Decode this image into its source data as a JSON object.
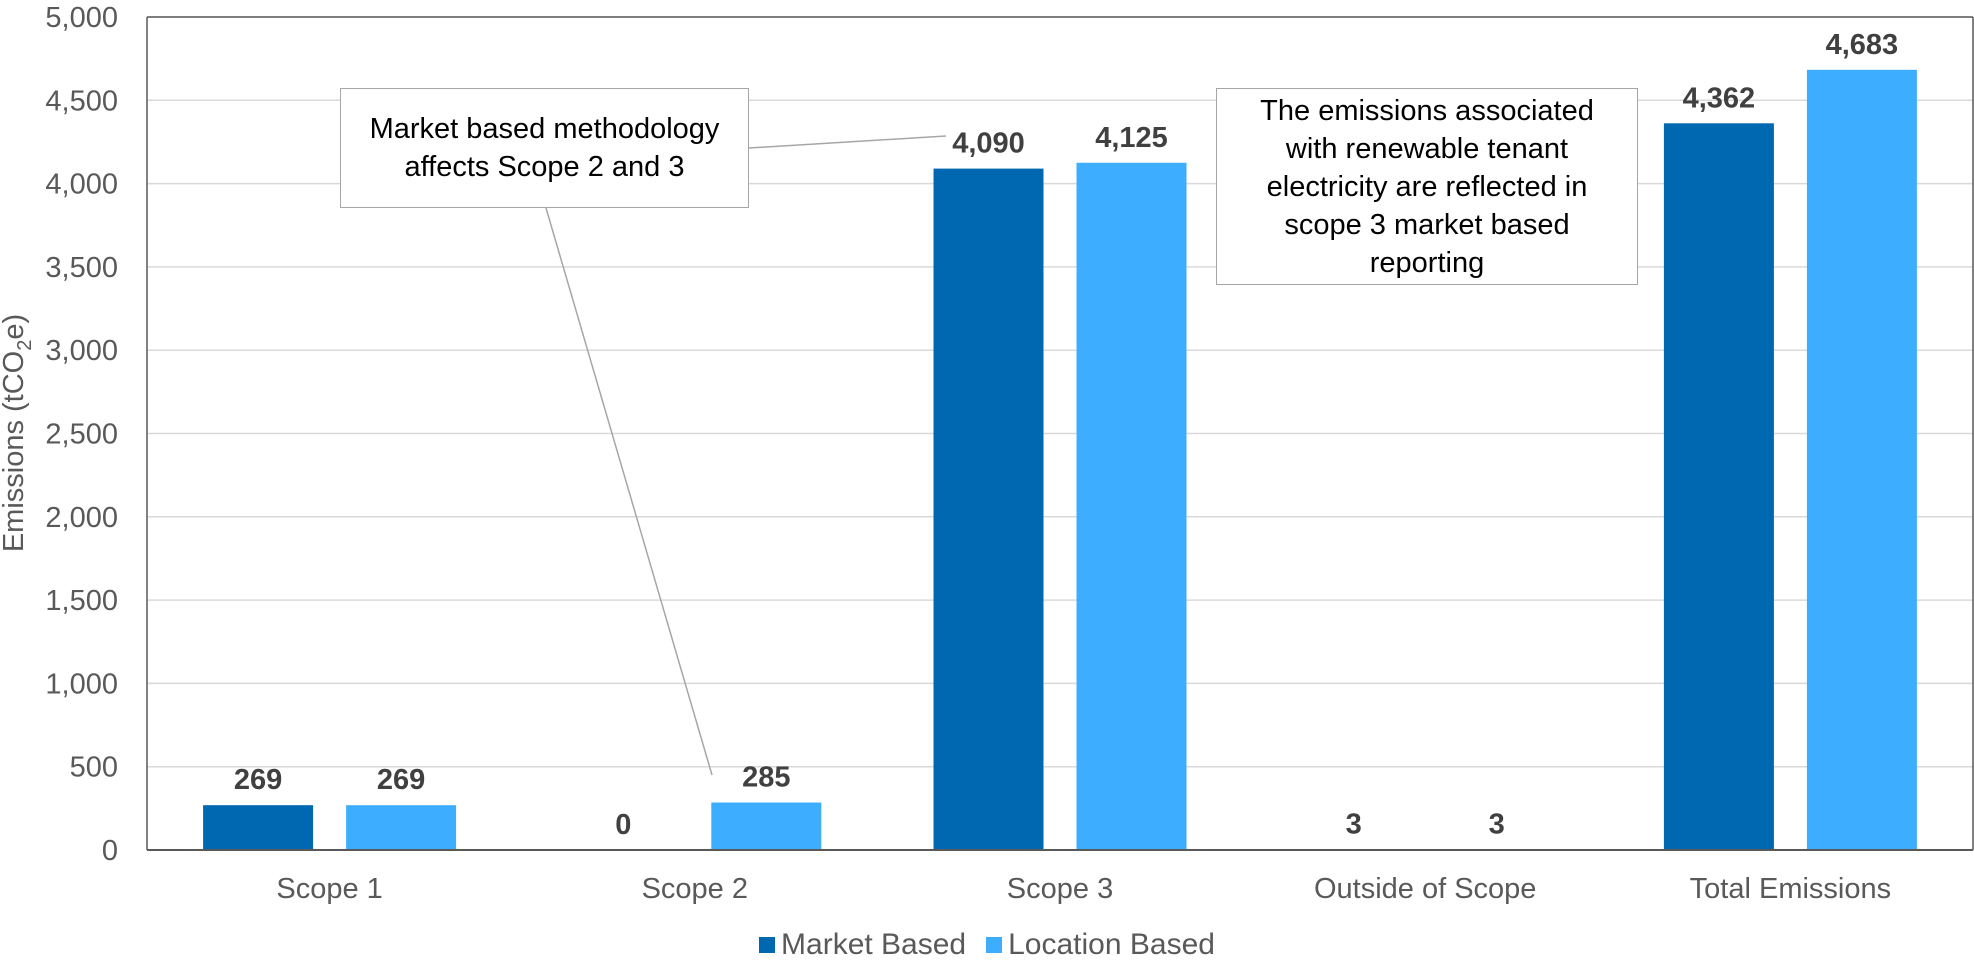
{
  "chart_data": {
    "type": "bar",
    "categories": [
      "Scope 1",
      "Scope 2",
      "Scope 3",
      "Outside of Scope",
      "Total Emissions"
    ],
    "series": [
      {
        "name": "Market Based",
        "color": "#0067B1",
        "values": [
          269,
          0,
          4090,
          3,
          4362
        ]
      },
      {
        "name": "Location Based",
        "color": "#3DAEFF",
        "values": [
          269,
          285,
          4125,
          3,
          4683
        ]
      }
    ],
    "data_labels": [
      [
        "269",
        "0",
        "4,090",
        "3",
        "4,362"
      ],
      [
        "269",
        "285",
        "4,125",
        "3",
        "4,683"
      ]
    ],
    "ylabel": "Emissions (tCO",
    "ylabel_subscript": "2",
    "ylabel_suffix": "e)",
    "ylim": [
      0,
      5000
    ],
    "yticks": [
      "0",
      "500",
      "1,000",
      "1,500",
      "2,000",
      "2,500",
      "3,000",
      "3,500",
      "4,000",
      "4,500",
      "5,000"
    ],
    "grid": true,
    "legend_position": "bottom",
    "annotations": [
      {
        "text": "Market based methodology\naffects Scope 2 and 3"
      },
      {
        "text": "The emissions associated\nwith renewable tenant\nelectricity are reflected in\nscope 3 market based\nreporting"
      }
    ]
  }
}
